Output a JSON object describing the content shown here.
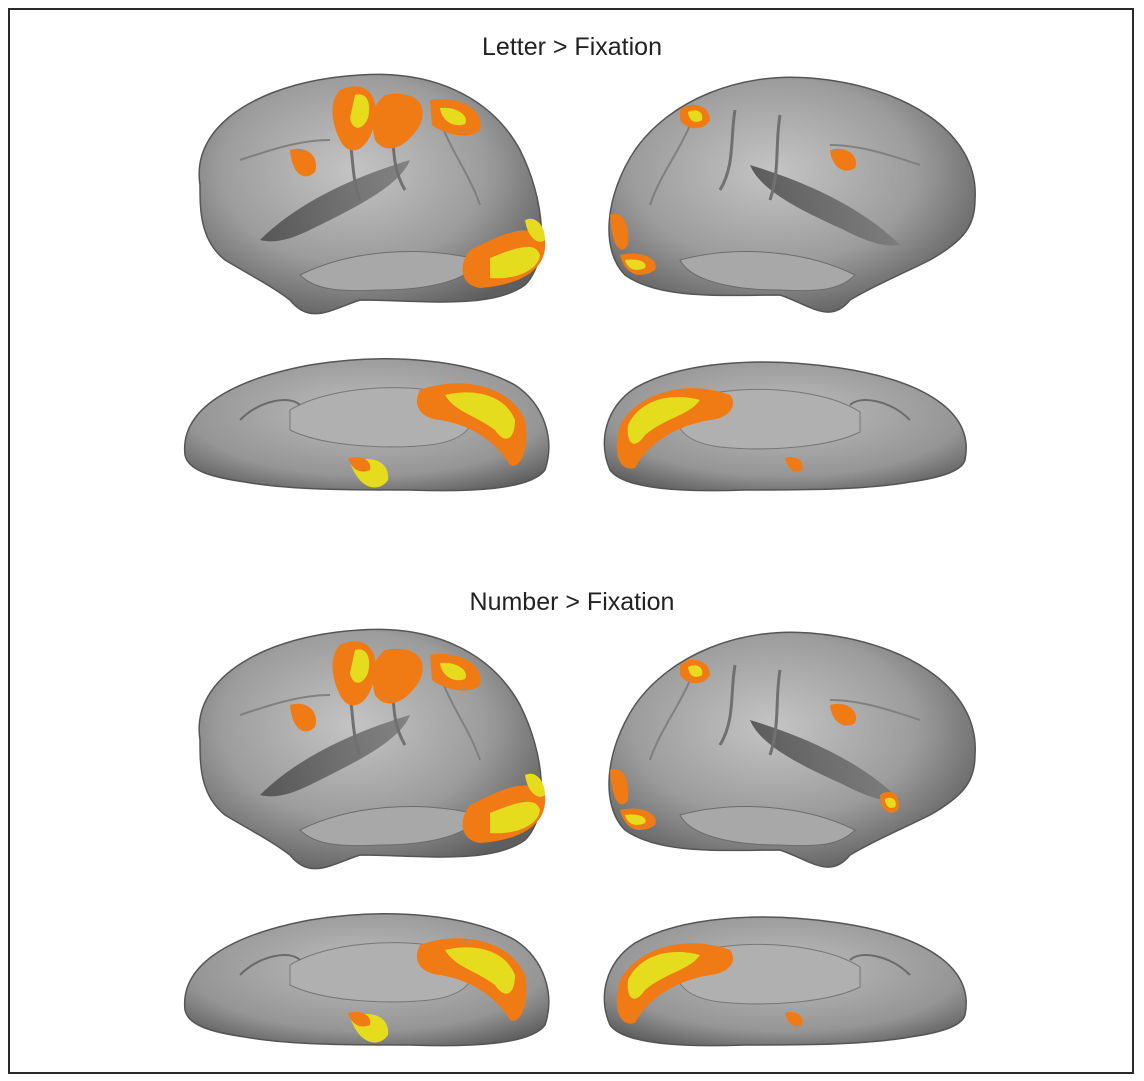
{
  "figure": {
    "panels": [
      {
        "title": "Letter > Fixation"
      },
      {
        "title": "Number > Fixation"
      }
    ],
    "colors": {
      "frame": "#2a2a2a",
      "cortex_light": "#b9b9b9",
      "cortex_dark": "#5e5e5e",
      "activation_orange": "#f07a14",
      "activation_yellow": "#e6dc1e",
      "background": "#ffffff"
    }
  }
}
